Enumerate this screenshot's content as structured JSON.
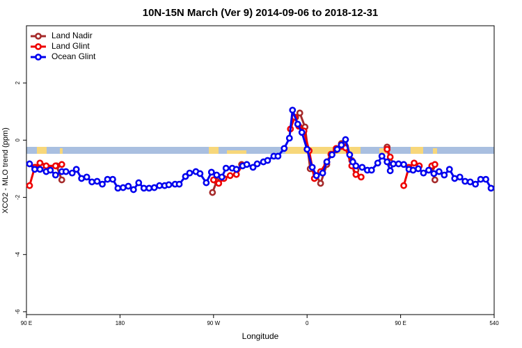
{
  "chart_data": {
    "type": "line",
    "title": "10N-15N March (Ver 9)   2014-09-06 to 2018-12-31",
    "x_label": "Longitude",
    "y_label": "XCO2 - MLO trend (ppm)",
    "xlim": [
      90,
      540
    ],
    "ylim": [
      -6.1,
      4
    ],
    "xticks": [
      {
        "value": 90,
        "label": "90 E"
      },
      180,
      {
        "value": 270,
        "label": "90 W"
      },
      {
        "value": 360,
        "label": "0"
      },
      {
        "value": 450,
        "label": "90 E"
      },
      540
    ],
    "yticks": [
      -6,
      -4,
      -2,
      0,
      2
    ],
    "legend": "upper-left",
    "series": [
      {
        "name": "Land Nadir",
        "color": "#a52a2a",
        "x": [
          99,
          105,
          119,
          124,
          null,
          269,
          273,
          null,
          297,
          null,
          349,
          353,
          358,
          363,
          369,
          373,
          379,
          383,
          388,
          393,
          397,
          403,
          407,
          null,
          437,
          440,
          null,
          480,
          483
        ],
        "values": [
          -0.95,
          -0.9,
          -0.9,
          -1.39,
          null,
          -1.83,
          -1.44,
          null,
          -0.85,
          null,
          0.8,
          0.95,
          0.46,
          -1.0,
          -1.24,
          -1.51,
          -0.85,
          -0.51,
          -0.34,
          -0.12,
          -0.22,
          -0.71,
          -1.05,
          null,
          -0.24,
          -0.78,
          null,
          -0.95,
          -1.39
        ]
      },
      {
        "name": "Land Glint",
        "color": "#ee0000",
        "x": [
          93,
          98,
          103,
          109,
          118,
          124,
          null,
          270,
          275,
          280,
          286,
          292,
          298,
          null,
          344,
          348,
          352,
          357,
          362,
          367,
          373,
          379,
          383,
          388,
          393,
          397,
          403,
          407,
          412,
          null,
          437,
          440,
          null,
          453,
          458,
          463,
          468,
          null,
          480,
          483
        ],
        "values": [
          -1.59,
          -0.95,
          -0.8,
          -0.9,
          -0.9,
          -0.85,
          null,
          -1.39,
          -1.51,
          -1.34,
          -1.24,
          -1.2,
          -0.88,
          null,
          0.39,
          0.8,
          0.49,
          0.32,
          -0.37,
          -1.34,
          -1.1,
          -0.76,
          -0.49,
          -0.29,
          -0.22,
          -0.27,
          -0.9,
          -1.2,
          -1.29,
          null,
          -0.32,
          -0.59,
          null,
          -1.59,
          -0.95,
          -0.8,
          -0.9,
          null,
          -0.9,
          -0.85
        ]
      },
      {
        "name": "Ocean Glint",
        "color": "#0000ee",
        "x": [
          93,
          98,
          103,
          109,
          113,
          118,
          124,
          128,
          134,
          138,
          143,
          148,
          153,
          158,
          163,
          168,
          173,
          178,
          183,
          188,
          193,
          198,
          203,
          208,
          213,
          218,
          223,
          227,
          233,
          237,
          243,
          247,
          253,
          257,
          263,
          268,
          273,
          278,
          282,
          288,
          292,
          298,
          302,
          308,
          312,
          318,
          322,
          328,
          332,
          338,
          343,
          346,
          351,
          355,
          360,
          365,
          369,
          375,
          379,
          384,
          389,
          393,
          397,
          401,
          404,
          407,
          413,
          418,
          422,
          428,
          432,
          437,
          440,
          443,
          448,
          453,
          458,
          462,
          467,
          472,
          477,
          482,
          487,
          492,
          497,
          502,
          507,
          512,
          517,
          522,
          527,
          532,
          537
        ],
        "values": [
          -0.83,
          -1.02,
          -1.02,
          -1.1,
          -1.05,
          -1.22,
          -1.1,
          -1.1,
          -1.15,
          -1.02,
          -1.34,
          -1.29,
          -1.46,
          -1.44,
          -1.54,
          -1.37,
          -1.37,
          -1.68,
          -1.66,
          -1.61,
          -1.73,
          -1.49,
          -1.68,
          -1.68,
          -1.66,
          -1.59,
          -1.59,
          -1.56,
          -1.54,
          -1.54,
          -1.27,
          -1.15,
          -1.1,
          -1.17,
          -1.49,
          -1.12,
          -1.22,
          -1.29,
          -0.98,
          -0.98,
          -1.02,
          -0.9,
          -0.85,
          -0.95,
          -0.83,
          -0.76,
          -0.71,
          -0.56,
          -0.56,
          -0.29,
          0.07,
          1.05,
          0.56,
          0.27,
          -0.32,
          -0.95,
          -1.24,
          -1.15,
          -0.76,
          -0.51,
          -0.32,
          -0.17,
          0.02,
          -0.51,
          -0.76,
          -0.9,
          -0.95,
          -1.05,
          -1.05,
          -0.8,
          -0.56,
          -0.76,
          -1.07,
          -0.83,
          -0.83,
          -0.85,
          -1.02,
          -1.05,
          -1.0,
          -1.15,
          -1.05,
          -1.17,
          -1.1,
          -1.22,
          -1.02,
          -1.34,
          -1.29,
          -1.44,
          -1.46,
          -1.54,
          -1.37,
          -1.37,
          -1.68
        ]
      }
    ]
  }
}
